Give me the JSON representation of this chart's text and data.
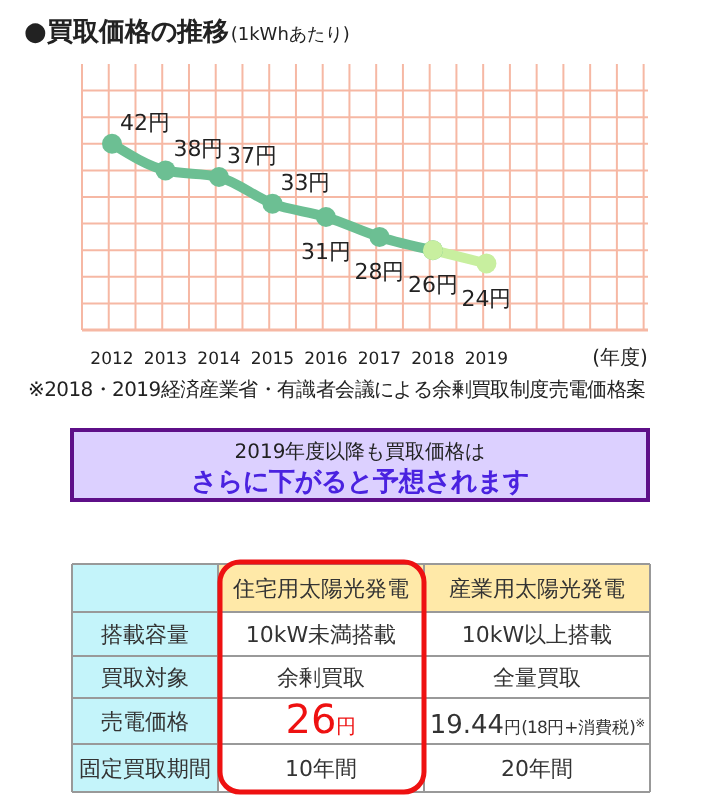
{
  "chart_data": [
    {
      "type": "line",
      "title": "●買取価格の推移",
      "subtitle": "(1kWhあたり)",
      "xlabel": "(年度)",
      "categories": [
        "2012",
        "2013",
        "2014",
        "2015",
        "2016",
        "2017",
        "2018",
        "2019",
        null,
        null
      ],
      "series": [
        {
          "color": "#6cbf93",
          "values": [
            42,
            38,
            37,
            33,
            31,
            28,
            26,
            null,
            null,
            null
          ],
          "value_labels": [
            "42円",
            "38円",
            "37円",
            "33円",
            "31円",
            "28円",
            "26円",
            null,
            null,
            null
          ]
        },
        {
          "color": "#c8ef9f",
          "values": [
            null,
            null,
            null,
            null,
            null,
            null,
            26,
            24,
            null,
            null
          ],
          "value_labels": [
            null,
            null,
            null,
            null,
            null,
            null,
            null,
            "24円",
            null,
            null
          ]
        }
      ],
      "ylim": [
        14,
        54
      ],
      "yticks": [
        {
          "value": 18,
          "label": null
        },
        {
          "value": 22,
          "label": null
        },
        {
          "value": 26,
          "label": null
        },
        {
          "value": 30,
          "label": null
        },
        {
          "value": 34,
          "label": null
        },
        {
          "value": 38,
          "label": null
        },
        {
          "value": 42,
          "label": null
        },
        {
          "value": 46,
          "label": null
        },
        {
          "value": 50,
          "label": null
        }
      ],
      "tick_labels": "x",
      "grid": true,
      "marker": "circle",
      "line_style": "solid",
      "annotations": [
        "※2018・2019経済産業省・有識者会議による余剰買取制度売電価格案"
      ]
    },
    {
      "type": "other",
      "title": "2019年度以降も買取価格は",
      "subtitle": "さらに下がると予想されます",
      "categories": [
        "住宅用太陽光発電",
        "産業用太陽光発電"
      ],
      "y_categories": [
        "搭載容量",
        "買取対象",
        "売電価格",
        "固定買取期間"
      ],
      "cell_labels": [
        [
          "10kW未満搭載",
          "10kW以上搭載"
        ],
        [
          "余剰買取",
          "全量買取"
        ],
        [
          "26円",
          "19.44円(18円+消費税)$^{※}$"
        ],
        [
          "10年間",
          "20年間"
        ]
      ]
    }
  ]
}
